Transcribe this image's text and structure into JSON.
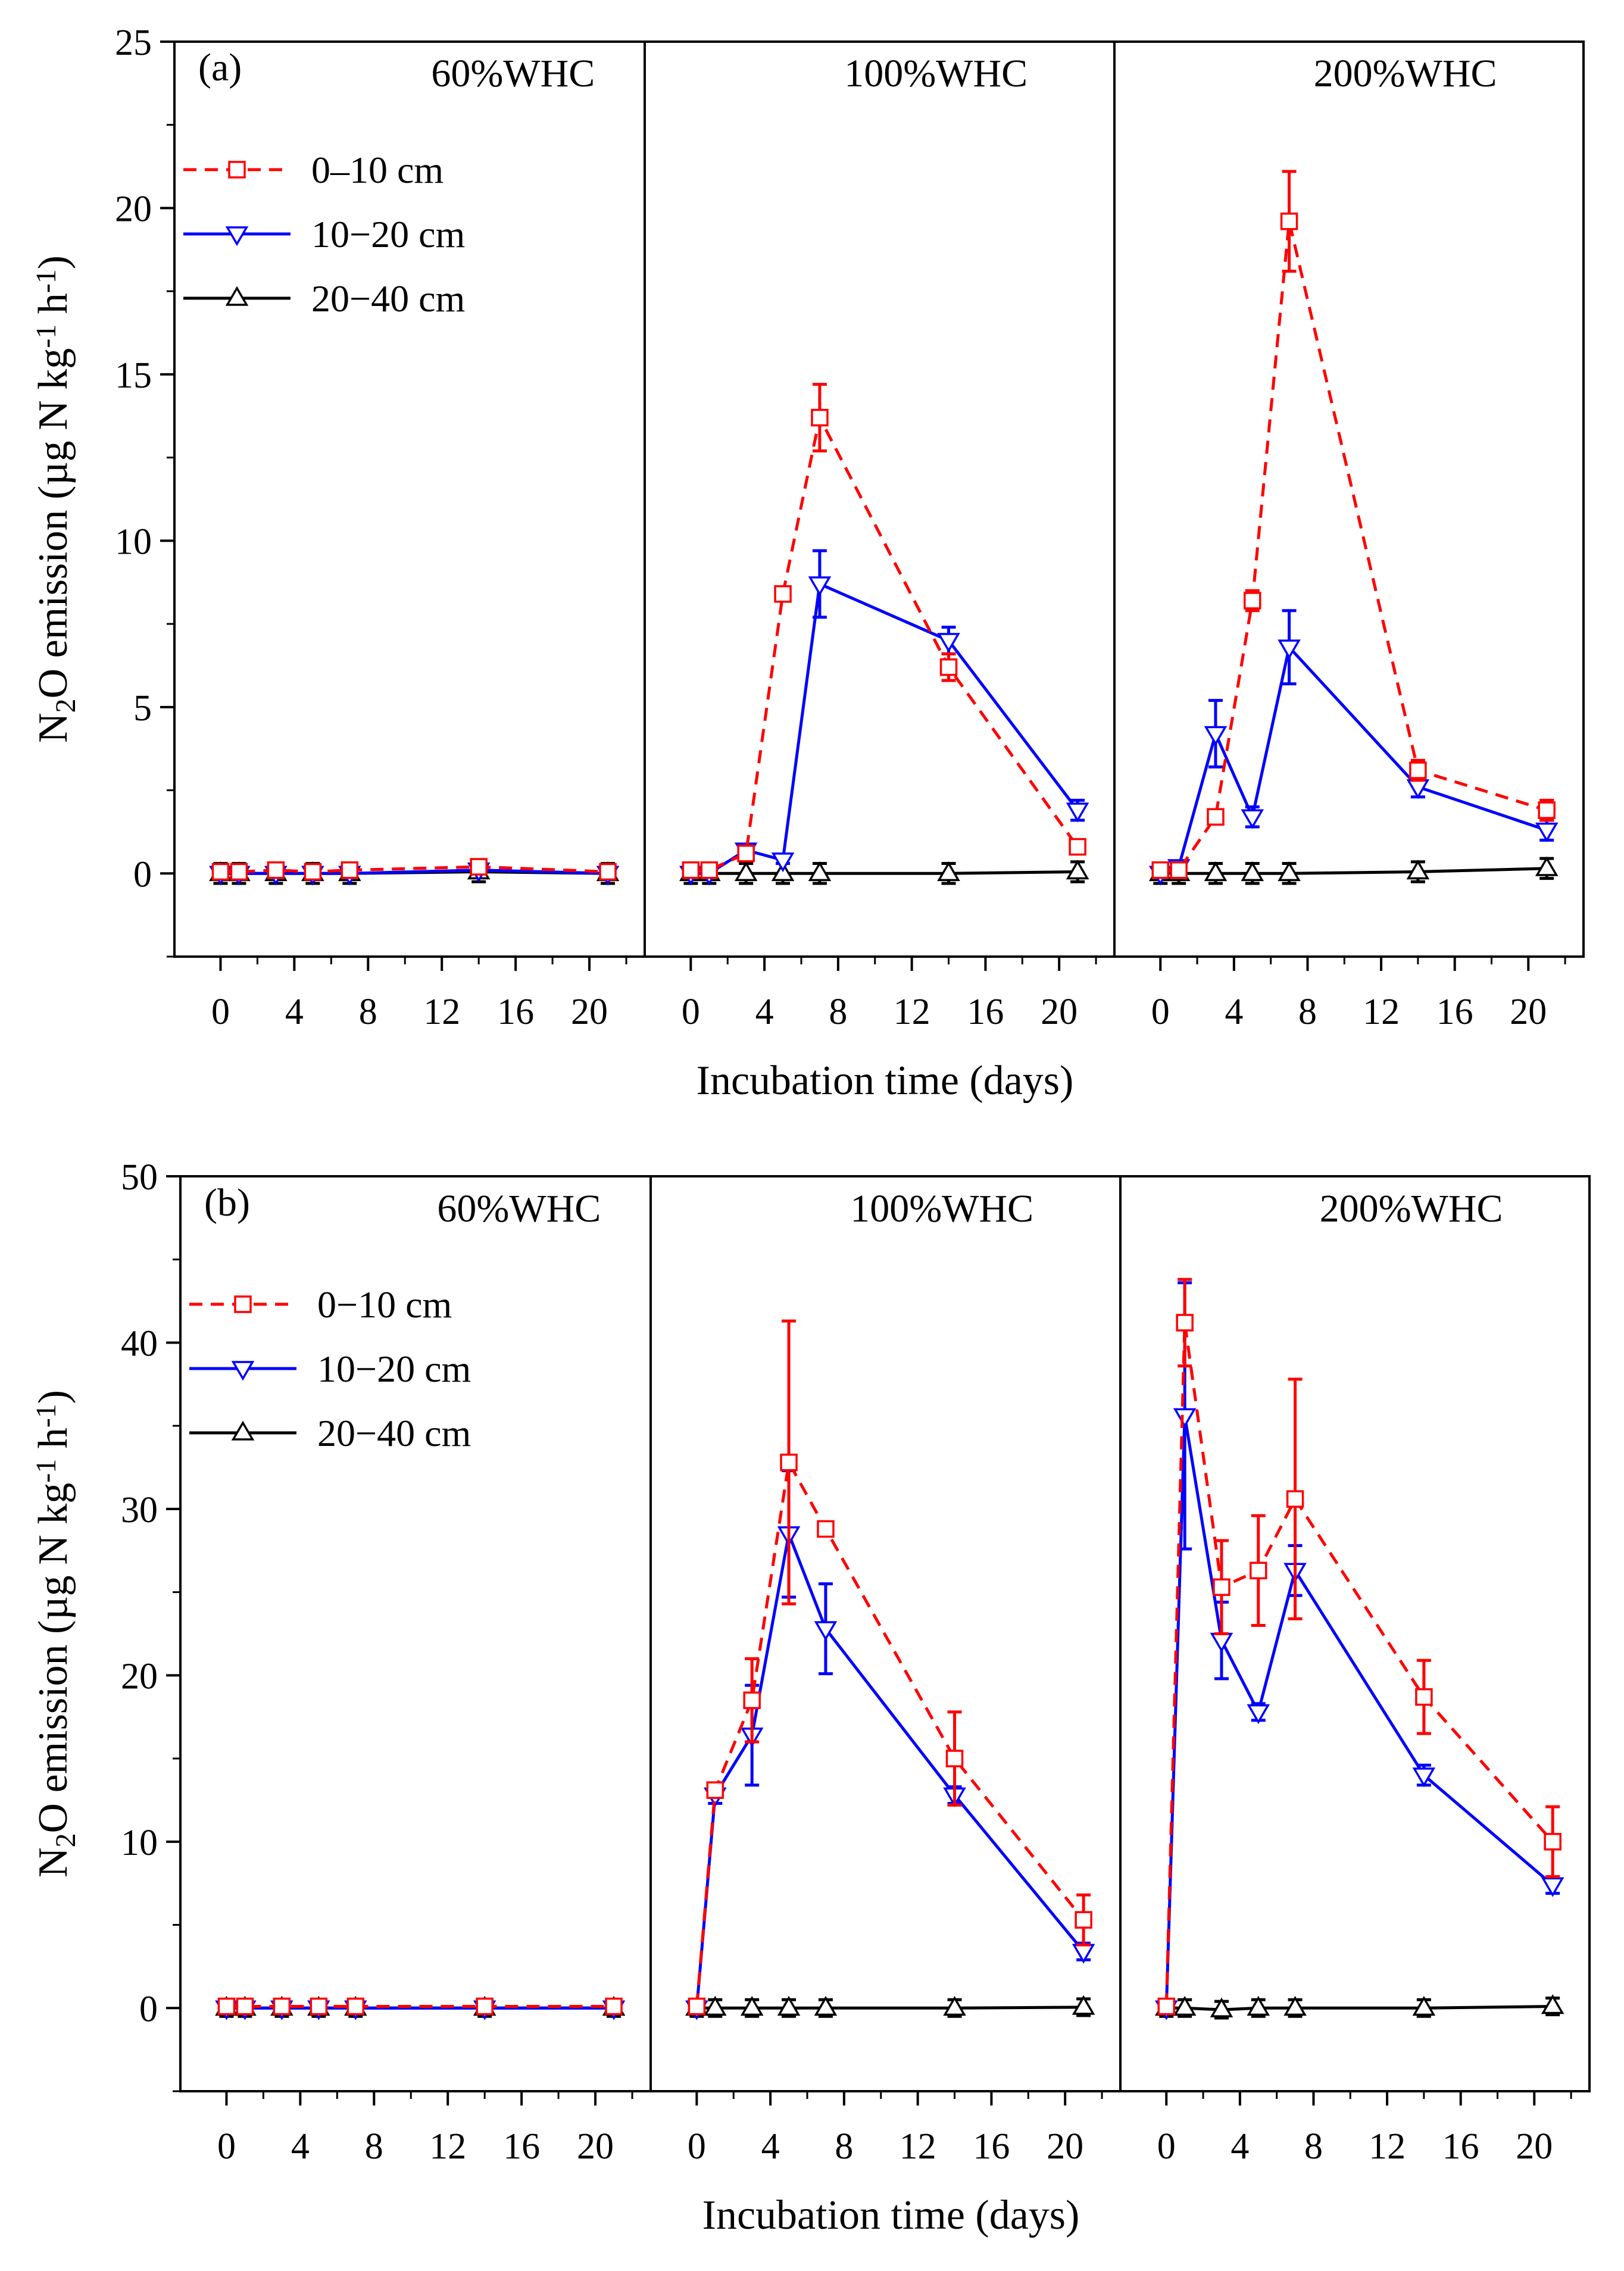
{
  "colors": {
    "s0": "#ff0000",
    "s1": "#0000ff",
    "s2": "#000000"
  },
  "chart_data": [
    {
      "type": "line",
      "id": "a",
      "label": "(a)",
      "xlabel": "Incubation time (days)",
      "ylabel": "N2O emission (µg N kg-1 h-1)",
      "ylim": [
        -2.5,
        25
      ],
      "yticks": [
        "0",
        "5",
        "10",
        "15",
        "20",
        "25"
      ],
      "xticks": [
        "0",
        "4",
        "8",
        "12",
        "16",
        "20"
      ],
      "xlim": [
        -2.5,
        23
      ],
      "legend": [
        "0–10 cm",
        "10−20 cm",
        "20−40 cm"
      ],
      "x": [
        0,
        1,
        3,
        5,
        7,
        14,
        21
      ],
      "panels": [
        {
          "title": "60%WHC",
          "series": [
            {
              "name": "0–10 cm",
              "values": [
                0.05,
                0.05,
                0.1,
                0.05,
                0.1,
                0.2,
                0.05
              ],
              "err": [
                0.05,
                0.05,
                0.05,
                0.05,
                0.05,
                0.08,
                0.05
              ]
            },
            {
              "name": "10−20 cm",
              "values": [
                0.0,
                0.0,
                0.0,
                0.0,
                0.0,
                0.1,
                0.0
              ],
              "err": [
                0.1,
                0.1,
                0.1,
                0.1,
                0.1,
                0.1,
                0.1
              ]
            },
            {
              "name": "20−40 cm",
              "values": [
                0.0,
                0.0,
                0.0,
                0.0,
                0.0,
                0.05,
                0.0
              ],
              "err": [
                0.3,
                0.3,
                0.3,
                0.3,
                0.3,
                0.3,
                0.3
              ]
            }
          ]
        },
        {
          "title": "100%WHC",
          "series": [
            {
              "name": "0–10 cm",
              "values": [
                0.1,
                0.1,
                0.6,
                8.4,
                13.7,
                6.2,
                0.8
              ],
              "err": [
                0.05,
                0.05,
                0.1,
                0.15,
                1.0,
                0.4,
                0.15
              ]
            },
            {
              "name": "10−20 cm",
              "values": [
                0.0,
                0.0,
                0.7,
                0.4,
                8.7,
                7.0,
                1.9
              ],
              "err": [
                0.1,
                0.1,
                0.1,
                0.1,
                1.0,
                0.4,
                0.3
              ]
            },
            {
              "name": "20−40 cm",
              "values": [
                0.0,
                0.0,
                0.0,
                0.0,
                0.0,
                0.0,
                0.05
              ],
              "err": [
                0.3,
                0.3,
                0.3,
                0.3,
                0.3,
                0.3,
                0.3
              ]
            }
          ]
        },
        {
          "title": "200%WHC",
          "series": [
            {
              "name": "0–10 cm",
              "values": [
                0.1,
                0.1,
                1.7,
                8.2,
                19.6,
                3.1,
                1.9
              ],
              "err": [
                0.05,
                0.05,
                0.1,
                0.3,
                1.5,
                0.3,
                0.3
              ]
            },
            {
              "name": "10−20 cm",
              "values": [
                0.0,
                0.2,
                4.2,
                1.7,
                6.8,
                2.6,
                1.3
              ],
              "err": [
                0.1,
                0.1,
                1.0,
                0.3,
                1.1,
                0.3,
                0.3
              ]
            },
            {
              "name": "20−40 cm",
              "values": [
                0.0,
                0.0,
                0.0,
                0.0,
                0.0,
                0.05,
                0.15
              ],
              "err": [
                0.3,
                0.3,
                0.3,
                0.3,
                0.3,
                0.3,
                0.3
              ]
            }
          ]
        }
      ]
    },
    {
      "type": "line",
      "id": "b",
      "label": "(b)",
      "xlabel": "Incubation time (days)",
      "ylabel": "N2O emission (µg N kg-1 h-1)",
      "ylim": [
        -5,
        50
      ],
      "yticks": [
        "0",
        "10",
        "20",
        "30",
        "40",
        "50"
      ],
      "xticks": [
        "0",
        "4",
        "8",
        "12",
        "16",
        "20"
      ],
      "xlim": [
        -2.5,
        23
      ],
      "legend": [
        "0−10 cm",
        "10−20 cm",
        "20−40 cm"
      ],
      "x": [
        0,
        1,
        3,
        5,
        7,
        14,
        21
      ],
      "panels": [
        {
          "title": "60%WHC",
          "series": [
            {
              "name": "0−10 cm",
              "values": [
                0.1,
                0.1,
                0.1,
                0.1,
                0.1,
                0.1,
                0.1
              ],
              "err": [
                0.1,
                0.1,
                0.1,
                0.1,
                0.1,
                0.1,
                0.1
              ]
            },
            {
              "name": "10−20 cm",
              "values": [
                0.0,
                0.0,
                0.0,
                0.0,
                0.0,
                0.0,
                0.0
              ],
              "err": [
                0.2,
                0.2,
                0.2,
                0.2,
                0.2,
                0.2,
                0.2
              ]
            },
            {
              "name": "20−40 cm",
              "values": [
                0.0,
                0.0,
                0.0,
                0.0,
                0.0,
                0.0,
                0.0
              ],
              "err": [
                0.5,
                0.5,
                0.5,
                0.5,
                0.5,
                0.5,
                0.5
              ]
            }
          ]
        },
        {
          "title": "100%WHC",
          "series": [
            {
              "name": "0−10 cm",
              "values": [
                0.1,
                13.1,
                18.5,
                32.8,
                28.8,
                15.0,
                5.3
              ],
              "err": [
                0.1,
                0.3,
                2.5,
                8.5,
                0.4,
                2.8,
                1.5
              ]
            },
            {
              "name": "10−20 cm",
              "values": [
                0.0,
                12.8,
                16.4,
                28.5,
                22.8,
                12.8,
                3.4
              ],
              "err": [
                0.1,
                0.5,
                3.0,
                3.8,
                2.7,
                0.5,
                0.5
              ]
            },
            {
              "name": "20−40 cm",
              "values": [
                0.0,
                0.0,
                0.0,
                0.0,
                0.0,
                0.0,
                0.05
              ],
              "err": [
                0.5,
                0.5,
                0.5,
                0.5,
                0.5,
                0.5,
                0.5
              ]
            }
          ]
        },
        {
          "title": "200%WHC",
          "series": [
            {
              "name": "0−10 cm",
              "values": [
                0.1,
                41.2,
                25.3,
                26.3,
                30.6,
                18.7,
                10.0
              ],
              "err": [
                0.1,
                2.6,
                2.8,
                3.3,
                7.2,
                2.2,
                2.1
              ]
            },
            {
              "name": "10−20 cm",
              "values": [
                0.0,
                35.6,
                22.1,
                17.8,
                26.3,
                14.0,
                7.4
              ],
              "err": [
                0.1,
                8.0,
                2.3,
                0.5,
                1.5,
                0.6,
                0.5
              ]
            },
            {
              "name": "20−40 cm",
              "values": [
                0.0,
                0.0,
                -0.1,
                0.0,
                0.0,
                0.0,
                0.1
              ],
              "err": [
                0.5,
                0.5,
                0.5,
                0.5,
                0.5,
                0.5,
                0.5
              ]
            }
          ]
        }
      ]
    }
  ]
}
